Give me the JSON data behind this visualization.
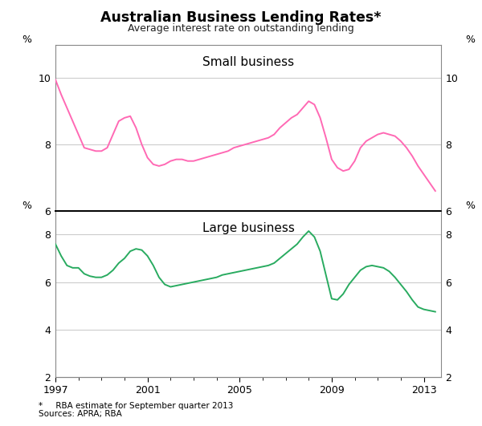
{
  "title": "Australian Business Lending Rates*",
  "subtitle": "Average interest rate on outstanding lending",
  "footnote1": "*     RBA estimate for September quarter 2013",
  "footnote2": "Sources: APRA; RBA",
  "small_business_color": "#FF69B4",
  "large_business_color": "#29AB60",
  "small_label": "Small business",
  "large_label": "Large business",
  "ylabel": "%",
  "small_ylim": [
    6,
    11
  ],
  "large_ylim": [
    2,
    9
  ],
  "small_yticks": [
    6,
    8,
    10
  ],
  "large_yticks": [
    2,
    4,
    6,
    8
  ],
  "small_business_x": [
    1997.0,
    1997.25,
    1997.5,
    1997.75,
    1998.0,
    1998.25,
    1998.5,
    1998.75,
    1999.0,
    1999.25,
    1999.5,
    1999.75,
    2000.0,
    2000.25,
    2000.5,
    2000.75,
    2001.0,
    2001.25,
    2001.5,
    2001.75,
    2002.0,
    2002.25,
    2002.5,
    2002.75,
    2003.0,
    2003.25,
    2003.5,
    2003.75,
    2004.0,
    2004.25,
    2004.5,
    2004.75,
    2005.0,
    2005.25,
    2005.5,
    2005.75,
    2006.0,
    2006.25,
    2006.5,
    2006.75,
    2007.0,
    2007.25,
    2007.5,
    2007.75,
    2008.0,
    2008.25,
    2008.5,
    2008.75,
    2009.0,
    2009.25,
    2009.5,
    2009.75,
    2010.0,
    2010.25,
    2010.5,
    2010.75,
    2011.0,
    2011.25,
    2011.5,
    2011.75,
    2012.0,
    2012.25,
    2012.5,
    2012.75,
    2013.0,
    2013.25,
    2013.5
  ],
  "small_business_y": [
    9.95,
    9.5,
    9.1,
    8.7,
    8.3,
    7.9,
    7.85,
    7.8,
    7.8,
    7.9,
    8.3,
    8.7,
    8.8,
    8.85,
    8.5,
    8.0,
    7.6,
    7.4,
    7.35,
    7.4,
    7.5,
    7.55,
    7.55,
    7.5,
    7.5,
    7.55,
    7.6,
    7.65,
    7.7,
    7.75,
    7.8,
    7.9,
    7.95,
    8.0,
    8.05,
    8.1,
    8.15,
    8.2,
    8.3,
    8.5,
    8.65,
    8.8,
    8.9,
    9.1,
    9.3,
    9.2,
    8.8,
    8.2,
    7.55,
    7.3,
    7.2,
    7.25,
    7.5,
    7.9,
    8.1,
    8.2,
    8.3,
    8.35,
    8.3,
    8.25,
    8.1,
    7.9,
    7.65,
    7.35,
    7.1,
    6.85,
    6.6
  ],
  "large_business_x": [
    1997.0,
    1997.25,
    1997.5,
    1997.75,
    1998.0,
    1998.25,
    1998.5,
    1998.75,
    1999.0,
    1999.25,
    1999.5,
    1999.75,
    2000.0,
    2000.25,
    2000.5,
    2000.75,
    2001.0,
    2001.25,
    2001.5,
    2001.75,
    2002.0,
    2002.25,
    2002.5,
    2002.75,
    2003.0,
    2003.25,
    2003.5,
    2003.75,
    2004.0,
    2004.25,
    2004.5,
    2004.75,
    2005.0,
    2005.25,
    2005.5,
    2005.75,
    2006.0,
    2006.25,
    2006.5,
    2006.75,
    2007.0,
    2007.25,
    2007.5,
    2007.75,
    2008.0,
    2008.25,
    2008.5,
    2008.75,
    2009.0,
    2009.25,
    2009.5,
    2009.75,
    2010.0,
    2010.25,
    2010.5,
    2010.75,
    2011.0,
    2011.25,
    2011.5,
    2011.75,
    2012.0,
    2012.25,
    2012.5,
    2012.75,
    2013.0,
    2013.25,
    2013.5
  ],
  "large_business_y": [
    7.6,
    7.1,
    6.7,
    6.6,
    6.6,
    6.35,
    6.25,
    6.2,
    6.2,
    6.3,
    6.5,
    6.8,
    7.0,
    7.3,
    7.4,
    7.35,
    7.1,
    6.7,
    6.2,
    5.9,
    5.8,
    5.85,
    5.9,
    5.95,
    6.0,
    6.05,
    6.1,
    6.15,
    6.2,
    6.3,
    6.35,
    6.4,
    6.45,
    6.5,
    6.55,
    6.6,
    6.65,
    6.7,
    6.8,
    7.0,
    7.2,
    7.4,
    7.6,
    7.9,
    8.15,
    7.9,
    7.3,
    6.3,
    5.3,
    5.25,
    5.5,
    5.9,
    6.2,
    6.5,
    6.65,
    6.7,
    6.65,
    6.6,
    6.45,
    6.2,
    5.9,
    5.6,
    5.25,
    4.95,
    4.85,
    4.8,
    4.75
  ],
  "x_ticks": [
    1997,
    2001,
    2005,
    2009,
    2013
  ],
  "x_min": 1997,
  "x_max": 2013.75
}
